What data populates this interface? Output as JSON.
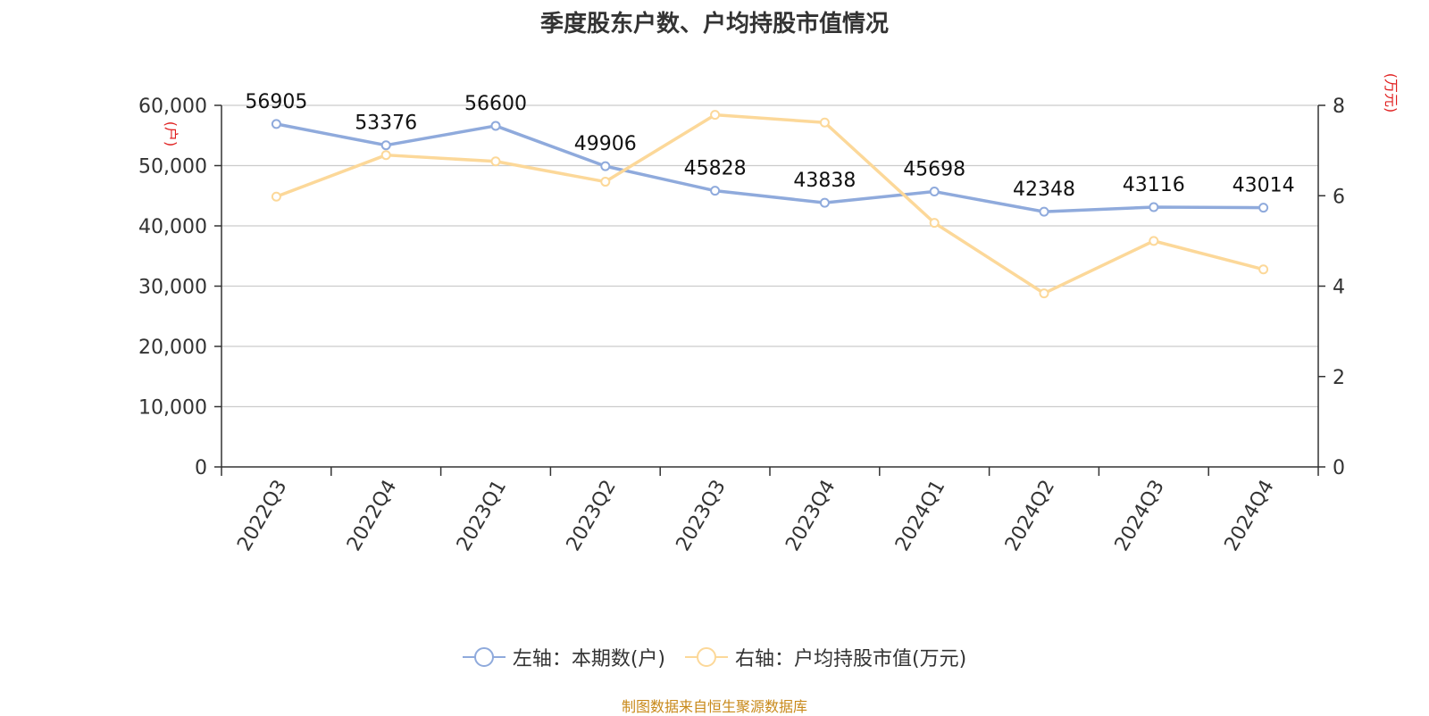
{
  "chart_data": {
    "type": "line",
    "title": "季度股东户数、户均持股市值情况",
    "categories": [
      "2022Q3",
      "2022Q4",
      "2023Q1",
      "2023Q2",
      "2023Q3",
      "2023Q4",
      "2024Q1",
      "2024Q2",
      "2024Q3",
      "2024Q4"
    ],
    "series": [
      {
        "name": "左轴：本期数(户)",
        "axis": "left",
        "color": "#8faadc",
        "values": [
          56905,
          53376,
          56600,
          49906,
          45828,
          43838,
          45698,
          42348,
          43116,
          43014
        ],
        "data_labels": [
          "56905",
          "53376",
          "56600",
          "49906",
          "45828",
          "43838",
          "45698",
          "42348",
          "43116",
          "43014"
        ]
      },
      {
        "name": "右轴：户均持股市值(万元)",
        "axis": "right",
        "color": "#fcd899",
        "values": [
          5.98,
          6.9,
          6.76,
          6.31,
          7.79,
          7.62,
          5.4,
          3.84,
          5.0,
          4.37
        ]
      }
    ],
    "left_axis": {
      "label": "(户)",
      "ylim": [
        0,
        60000
      ],
      "ticks": [
        0,
        10000,
        20000,
        30000,
        40000,
        50000,
        60000
      ],
      "tick_labels": [
        "0",
        "10,000",
        "20,000",
        "30,000",
        "40,000",
        "50,000",
        "60,000"
      ]
    },
    "right_axis": {
      "label": "(万元)",
      "ylim": [
        0,
        8
      ],
      "ticks": [
        0,
        2,
        4,
        6,
        8
      ],
      "tick_labels": [
        "0",
        "2",
        "4",
        "6",
        "8"
      ]
    },
    "grid": true,
    "legend_position": "bottom"
  },
  "source_text": "制图数据来自恒生聚源数据库",
  "colors": {
    "axis_label": "#e02020",
    "source": "#c8891a",
    "grid": "#cccccc",
    "axis": "#333333"
  }
}
